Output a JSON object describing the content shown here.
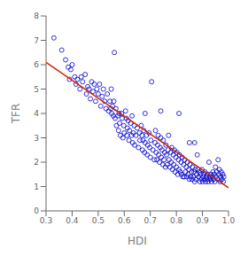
{
  "chart_data": {
    "type": "scatter",
    "title": "",
    "xlabel": "HDI",
    "ylabel": "TFR",
    "xlim": [
      0.3,
      1.0
    ],
    "ylim": [
      0,
      8
    ],
    "xticks": [
      0.3,
      0.4,
      0.5,
      0.6,
      0.7,
      0.8,
      0.9,
      {
        "value": 1.0,
        "label": "1.0"
      }
    ],
    "yticks": [
      0,
      1,
      2,
      3,
      4,
      5,
      6,
      7,
      8
    ],
    "series": [
      {
        "type": "scatter",
        "color": "#0000CC",
        "marker": "circle",
        "x": [
          0.33,
          0.36,
          0.375,
          0.385,
          0.39,
          0.395,
          0.4,
          0.41,
          0.415,
          0.42,
          0.43,
          0.435,
          0.44,
          0.45,
          0.455,
          0.46,
          0.465,
          0.47,
          0.475,
          0.48,
          0.485,
          0.49,
          0.495,
          0.5,
          0.505,
          0.51,
          0.515,
          0.52,
          0.525,
          0.53,
          0.535,
          0.54,
          0.545,
          0.548,
          0.55,
          0.552,
          0.555,
          0.558,
          0.56,
          0.562,
          0.565,
          0.568,
          0.57,
          0.575,
          0.578,
          0.58,
          0.582,
          0.585,
          0.59,
          0.592,
          0.595,
          0.598,
          0.6,
          0.605,
          0.608,
          0.61,
          0.612,
          0.615,
          0.618,
          0.62,
          0.625,
          0.628,
          0.63,
          0.632,
          0.635,
          0.638,
          0.64,
          0.645,
          0.65,
          0.655,
          0.658,
          0.66,
          0.665,
          0.668,
          0.67,
          0.672,
          0.675,
          0.678,
          0.68,
          0.685,
          0.688,
          0.69,
          0.695,
          0.698,
          0.7,
          0.702,
          0.705,
          0.71,
          0.715,
          0.718,
          0.72,
          0.722,
          0.725,
          0.728,
          0.73,
          0.732,
          0.735,
          0.738,
          0.74,
          0.742,
          0.745,
          0.748,
          0.75,
          0.752,
          0.755,
          0.758,
          0.76,
          0.762,
          0.765,
          0.768,
          0.77,
          0.772,
          0.775,
          0.778,
          0.78,
          0.782,
          0.785,
          0.788,
          0.79,
          0.792,
          0.795,
          0.798,
          0.8,
          0.802,
          0.805,
          0.808,
          0.81,
          0.812,
          0.815,
          0.818,
          0.82,
          0.822,
          0.825,
          0.828,
          0.83,
          0.832,
          0.835,
          0.838,
          0.84,
          0.842,
          0.845,
          0.848,
          0.85,
          0.852,
          0.855,
          0.858,
          0.86,
          0.862,
          0.865,
          0.868,
          0.87,
          0.872,
          0.875,
          0.878,
          0.88,
          0.882,
          0.885,
          0.888,
          0.89,
          0.892,
          0.895,
          0.898,
          0.9,
          0.902,
          0.905,
          0.908,
          0.91,
          0.912,
          0.915,
          0.918,
          0.92,
          0.922,
          0.925,
          0.928,
          0.93,
          0.932,
          0.935,
          0.938,
          0.94,
          0.942,
          0.945,
          0.948,
          0.95,
          0.952,
          0.955,
          0.958,
          0.96,
          0.962,
          0.965,
          0.968,
          0.97,
          0.972,
          0.975,
          0.978,
          0.98,
          0.982,
          0.85,
          0.87,
          0.81,
          0.68,
          0.74
        ],
        "values": [
          7.1,
          6.6,
          6.2,
          5.9,
          5.4,
          5.8,
          6.0,
          5.5,
          5.2,
          5.4,
          5.0,
          5.5,
          5.3,
          5.6,
          4.8,
          5.1,
          5.0,
          4.6,
          5.3,
          4.9,
          5.2,
          4.5,
          5.0,
          4.8,
          5.2,
          4.3,
          4.7,
          5.0,
          4.5,
          4.2,
          4.8,
          4.1,
          4.5,
          4.2,
          5.0,
          4.0,
          4.3,
          3.9,
          4.5,
          6.5,
          3.8,
          4.2,
          3.5,
          3.9,
          3.3,
          4.0,
          3.6,
          3.1,
          4.0,
          3.8,
          3.0,
          3.5,
          3.2,
          4.1,
          3.8,
          3.1,
          3.4,
          3.7,
          2.9,
          3.3,
          3.6,
          3.1,
          3.9,
          2.8,
          3.2,
          3.5,
          2.7,
          3.1,
          3.4,
          2.6,
          3.2,
          2.9,
          3.5,
          3.1,
          2.5,
          2.9,
          3.3,
          2.4,
          2.8,
          3.1,
          2.3,
          2.7,
          3.2,
          2.6,
          2.2,
          2.9,
          5.3,
          2.5,
          2.1,
          2.8,
          3.3,
          2.4,
          2.1,
          2.7,
          3.1,
          2.3,
          2.0,
          2.6,
          3.0,
          2.2,
          2.5,
          1.9,
          2.9,
          2.1,
          2.4,
          1.8,
          2.7,
          2.3,
          1.9,
          2.5,
          3.1,
          2.1,
          1.8,
          2.4,
          2.0,
          2.6,
          1.7,
          2.3,
          1.9,
          2.5,
          1.6,
          2.2,
          1.8,
          2.4,
          1.5,
          2.1,
          1.7,
          2.3,
          1.6,
          2.0,
          1.5,
          2.2,
          1.4,
          1.9,
          1.4,
          2.1,
          1.6,
          1.8,
          1.4,
          2.0,
          1.5,
          1.7,
          1.3,
          1.9,
          1.4,
          1.6,
          1.3,
          1.8,
          1.4,
          1.6,
          1.2,
          1.7,
          1.3,
          1.5,
          2.3,
          1.7,
          1.4,
          1.6,
          1.2,
          1.5,
          1.3,
          1.7,
          1.2,
          1.4,
          1.5,
          1.3,
          1.6,
          1.2,
          1.4,
          1.3,
          1.5,
          1.2,
          2.0,
          1.4,
          1.3,
          1.5,
          1.2,
          1.4,
          1.6,
          1.3,
          1.5,
          1.2,
          1.8,
          1.4,
          1.6,
          1.3,
          2.1,
          1.5,
          1.7,
          1.2,
          1.4,
          1.6,
          1.3,
          1.5,
          1.2,
          1.4,
          2.8,
          2.8,
          4.0,
          4.0,
          4.1
        ]
      },
      {
        "type": "line",
        "color": "#CC2200",
        "x": [
          0.3,
          1.0
        ],
        "values": [
          6.1,
          0.95
        ]
      }
    ]
  }
}
